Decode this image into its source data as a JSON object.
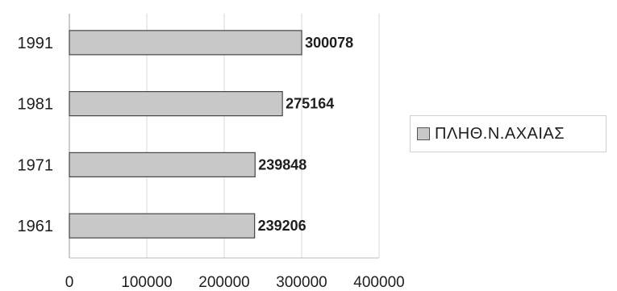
{
  "chart_data": {
    "type": "bar",
    "orientation": "horizontal",
    "categories": [
      "1991",
      "1981",
      "1971",
      "1961"
    ],
    "series": [
      {
        "name": "ΠΛΗΘ.Ν.ΑΧΑΙΑΣ",
        "values": [
          300078,
          275164,
          239848,
          239206
        ]
      }
    ],
    "data_labels": [
      "300078",
      "275164",
      "239848",
      "239206"
    ],
    "xlim": [
      0,
      400000
    ],
    "x_ticks": [
      "0",
      "100000",
      "200000",
      "300000",
      "400000"
    ],
    "grid": true,
    "legend_position": "right",
    "colors": {
      "bar_fill": "#c8c8c8",
      "bar_stroke": "#444444",
      "grid": "#d8d8d8",
      "text": "#1e1e1e"
    }
  }
}
